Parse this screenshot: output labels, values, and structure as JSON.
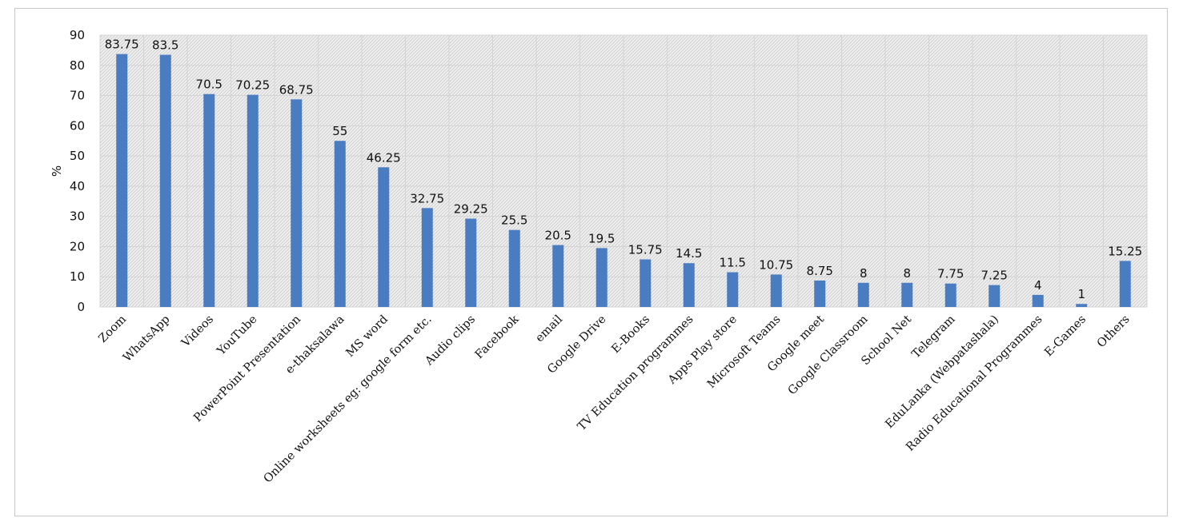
{
  "chart_data": {
    "type": "bar",
    "title": "",
    "xlabel": "",
    "ylabel": "%",
    "ylim": [
      0,
      90
    ],
    "yticks": [
      0,
      10,
      20,
      30,
      40,
      50,
      60,
      70,
      80,
      90
    ],
    "grid": true,
    "legend": "none",
    "bar_color": "#4a7cc2",
    "categories": [
      "Zoom",
      "WhatsApp",
      "Videos",
      "YouTube",
      "PowerPoint Presentation",
      "e-thaksalawa",
      "MS word",
      "Online worksheets eg: google form etc.",
      "Audio clips",
      "Facebook",
      "email",
      "Google Drive",
      "E-Books",
      "TV Education programmes",
      "Apps Play store",
      "Microsoft Teams",
      "Google meet",
      "Google Classroom",
      "School Net",
      "Telegram",
      "EduLanka (Webpatashala)",
      "Radio Educational Programmes",
      "E-Games",
      "Others"
    ],
    "values": [
      83.75,
      83.5,
      70.5,
      70.25,
      68.75,
      55,
      46.25,
      32.75,
      29.25,
      25.5,
      20.5,
      19.5,
      15.75,
      14.5,
      11.5,
      10.75,
      8.75,
      8,
      8,
      7.75,
      7.25,
      4,
      1,
      15.25
    ],
    "data_labels": [
      "83.75",
      "83.5",
      "70.5",
      "70.25",
      "68.75",
      "55",
      "46.25",
      "32.75",
      "29.25",
      "25.5",
      "20.5",
      "19.5",
      "15.75",
      "14.5",
      "11.5",
      "10.75",
      "8.75",
      "8",
      "8",
      "7.75",
      "7.25",
      "4",
      "1",
      "15.25"
    ]
  }
}
